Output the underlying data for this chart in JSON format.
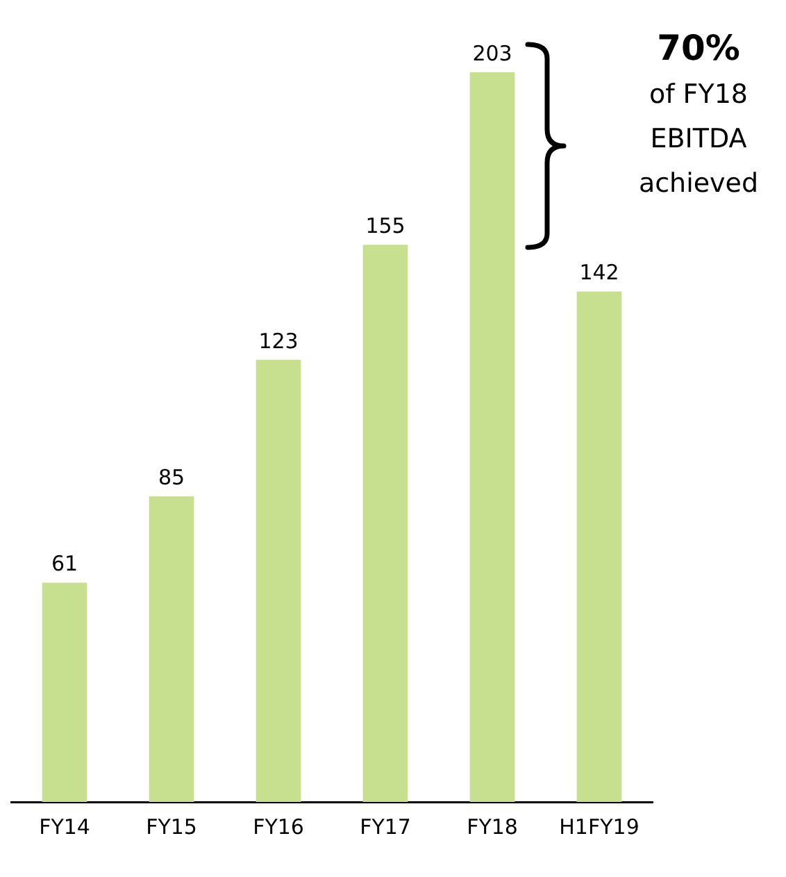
{
  "chart_data": {
    "type": "bar",
    "categories": [
      "FY14",
      "FY15",
      "FY16",
      "FY17",
      "FY18",
      "H1FY19"
    ],
    "values": [
      61,
      85,
      123,
      155,
      203,
      142
    ],
    "color": "#c6e08f",
    "data_labels": true,
    "grid": false,
    "legend": false,
    "annotations": [
      "70%",
      "of FY18\nEBITDA\nachieved"
    ]
  }
}
